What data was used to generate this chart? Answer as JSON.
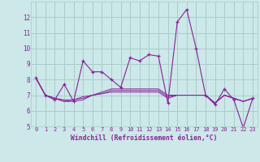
{
  "xlabel": "Windchill (Refroidissement éolien,°C)",
  "background_color": "#cce8e8",
  "grid_color": "#aacccc",
  "line_color": "#882299",
  "x_values": [
    0,
    1,
    2,
    3,
    4,
    5,
    6,
    7,
    8,
    9,
    10,
    11,
    12,
    13,
    14,
    15,
    16,
    17,
    18,
    19,
    20,
    21,
    22,
    23
  ],
  "series": [
    [
      8.1,
      7.0,
      6.7,
      7.7,
      6.6,
      9.2,
      8.5,
      8.5,
      8.0,
      7.5,
      9.4,
      9.2,
      9.6,
      9.5,
      6.5,
      11.7,
      12.5,
      10.0,
      7.0,
      6.4,
      7.4,
      6.7,
      4.9,
      6.8
    ],
    [
      8.1,
      7.0,
      6.8,
      6.6,
      6.6,
      6.7,
      7.0,
      7.1,
      7.2,
      7.2,
      7.2,
      7.2,
      7.2,
      7.2,
      6.8,
      7.0,
      7.0,
      7.0,
      7.0,
      6.5,
      7.0,
      6.8,
      6.6,
      6.8
    ],
    [
      8.1,
      7.0,
      6.8,
      6.6,
      6.7,
      6.8,
      7.0,
      7.1,
      7.3,
      7.3,
      7.3,
      7.3,
      7.3,
      7.3,
      6.9,
      7.0,
      7.0,
      7.0,
      7.0,
      6.5,
      7.0,
      6.8,
      6.6,
      6.8
    ],
    [
      8.1,
      7.0,
      6.8,
      6.7,
      6.7,
      6.9,
      7.0,
      7.2,
      7.4,
      7.4,
      7.4,
      7.4,
      7.4,
      7.4,
      7.0,
      7.0,
      7.0,
      7.0,
      7.0,
      6.5,
      7.0,
      6.8,
      6.6,
      6.8
    ]
  ],
  "ylim": [
    5,
    13
  ],
  "yticks": [
    5,
    6,
    7,
    8,
    9,
    10,
    11,
    12
  ],
  "xlim": [
    -0.5,
    23.5
  ],
  "xticks": [
    0,
    1,
    2,
    3,
    4,
    5,
    6,
    7,
    8,
    9,
    10,
    11,
    12,
    13,
    14,
    15,
    16,
    17,
    18,
    19,
    20,
    21,
    22,
    23
  ]
}
